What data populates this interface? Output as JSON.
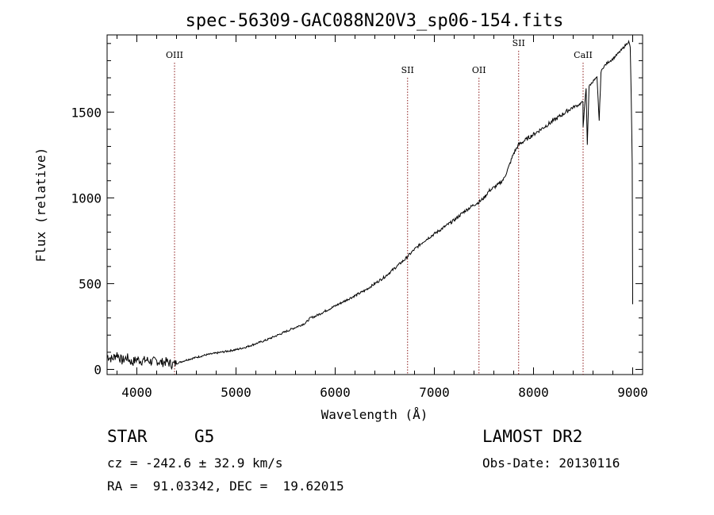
{
  "chart_data": {
    "type": "line",
    "title": "spec-56309-GAC088N20V3_sp06-154.fits",
    "xlabel": "Wavelength (Å)",
    "ylabel": "Flux (relative)",
    "xlim": [
      3700,
      9100
    ],
    "ylim": [
      -30,
      1950
    ],
    "x_ticks": [
      4000,
      5000,
      6000,
      7000,
      8000,
      9000
    ],
    "y_ticks": [
      0,
      500,
      1000,
      1500
    ],
    "series": [
      {
        "x": [
          3700,
          3750,
          3800,
          3850,
          3900,
          3950,
          4000,
          4050,
          4100,
          4150,
          4200,
          4250,
          4300,
          4350,
          4400,
          4450,
          4500,
          4600,
          4700,
          4800,
          4900,
          5000,
          5100,
          5200,
          5300,
          5400,
          5500,
          5600,
          5700,
          5750,
          5800,
          5900,
          6000,
          6100,
          6200,
          6300,
          6400,
          6500,
          6600,
          6700,
          6800,
          6900,
          7000,
          7100,
          7200,
          7300,
          7400,
          7450,
          7500,
          7550,
          7600,
          7650,
          7700,
          7750,
          7800,
          7850,
          7900,
          7950,
          8000,
          8050,
          8100,
          8150,
          8200,
          8250,
          8300,
          8350,
          8400,
          8450,
          8498,
          8500,
          8530,
          8542,
          8560,
          8600,
          8640,
          8662,
          8680,
          8700,
          8750,
          8800,
          8850,
          8900,
          8940,
          8960,
          8975,
          8985,
          8995,
          9000
        ],
        "y": [
          80,
          60,
          90,
          50,
          70,
          40,
          60,
          50,
          55,
          45,
          50,
          40,
          45,
          30,
          35,
          45,
          55,
          70,
          85,
          95,
          105,
          115,
          130,
          150,
          170,
          195,
          220,
          245,
          270,
          300,
          310,
          340,
          370,
          400,
          430,
          460,
          500,
          540,
          590,
          640,
          700,
          750,
          790,
          830,
          870,
          920,
          960,
          975,
          1000,
          1040,
          1060,
          1080,
          1110,
          1180,
          1260,
          1310,
          1330,
          1350,
          1370,
          1390,
          1410,
          1430,
          1450,
          1470,
          1490,
          1510,
          1530,
          1540,
          1560,
          1420,
          1640,
          1310,
          1650,
          1680,
          1700,
          1450,
          1730,
          1760,
          1790,
          1810,
          1840,
          1870,
          1900,
          1910,
          1880,
          1600,
          1200,
          380
        ],
        "units": "relative flux"
      }
    ],
    "annotations": [
      {
        "label": "OIII",
        "x": 4380
      },
      {
        "label": "SII",
        "x": 6730
      },
      {
        "label": "OII",
        "x": 7450
      },
      {
        "label": "SII",
        "x": 7850
      },
      {
        "label": "CaII",
        "x": 8500
      }
    ]
  },
  "info": {
    "object_class": "STAR",
    "subclass": "G5",
    "cz": "cz = -242.6 ± 32.9 km/s",
    "radec": "RA =  91.03342, DEC =  19.62015",
    "survey": "LAMOST DR2",
    "obs_date": "Obs-Date: 20130116"
  },
  "colors": {
    "spectrum": "#000000",
    "line_markers": "#8b1a1a"
  }
}
